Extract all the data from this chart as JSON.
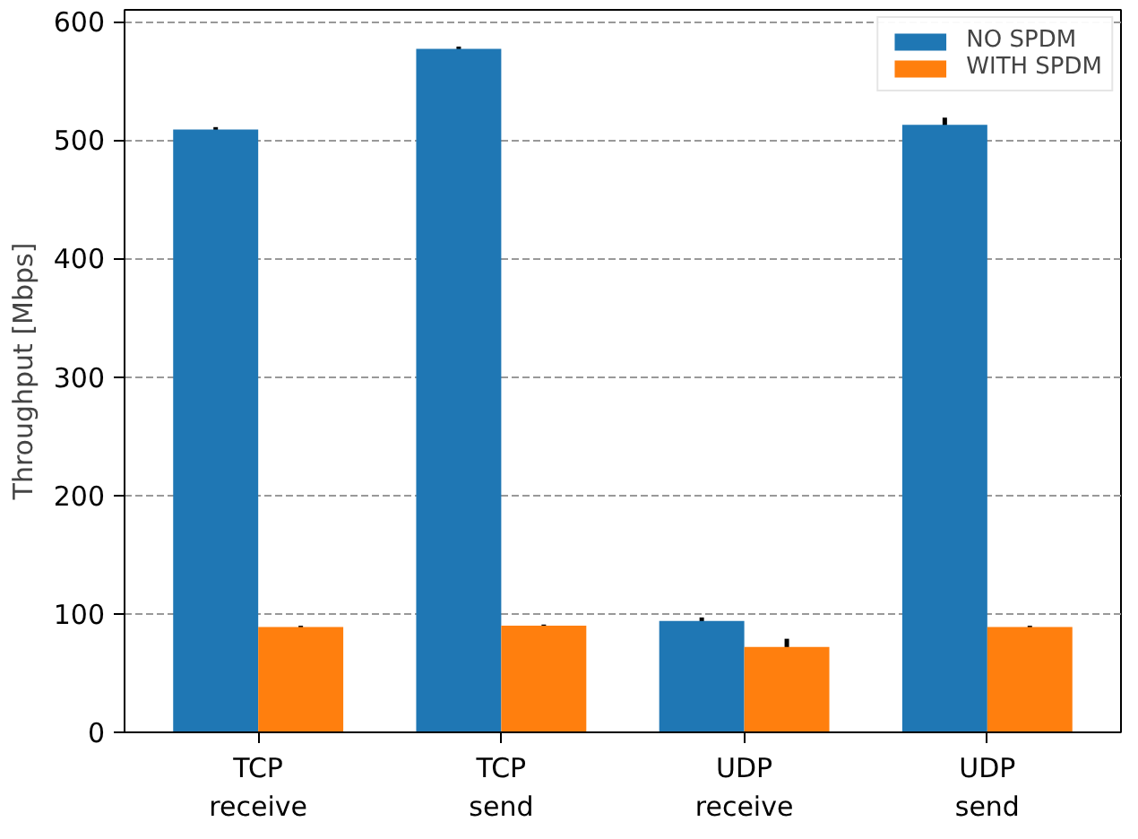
{
  "chart_data": {
    "type": "bar",
    "ylabel": "Throughput [Mbps]",
    "categories": [
      "TCP receive",
      "TCP send",
      "UDP receive",
      "UDP send"
    ],
    "series": [
      {
        "name": "NO SPDM",
        "color": "#1f77b4",
        "values": [
          509,
          577,
          94,
          513
        ],
        "errors": [
          2,
          2,
          3,
          6
        ]
      },
      {
        "name": "WITH SPDM",
        "color": "#ff7f0e",
        "values": [
          89,
          90,
          72,
          89
        ],
        "errors": [
          1,
          1,
          7,
          1
        ]
      }
    ],
    "ylim": [
      0,
      610
    ],
    "yticks": [
      0,
      100,
      200,
      300,
      400,
      500,
      600
    ],
    "grid": "y",
    "legend": "top right"
  }
}
